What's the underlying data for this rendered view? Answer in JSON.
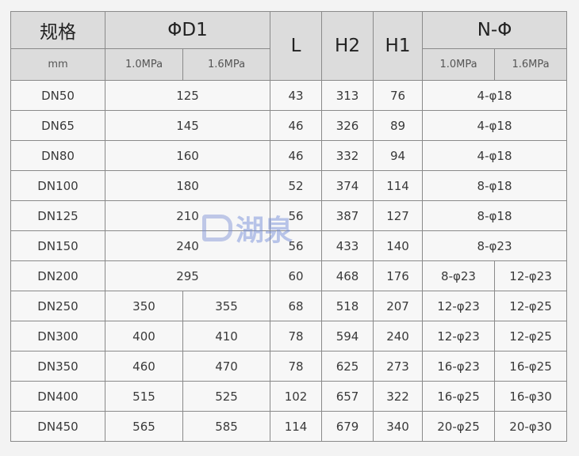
{
  "header": {
    "spec": "规格",
    "d1": "ΦD1",
    "l": "L",
    "h2": "H2",
    "h1": "H1",
    "nphi": "N-Φ",
    "unit": "mm",
    "p10": "1.0MPa",
    "p16": "1.6MPa"
  },
  "watermark": "湖泉",
  "rows": [
    {
      "dn": "DN50",
      "d1": "125",
      "l": "43",
      "h2": "313",
      "h1": "76",
      "n": "4-φ18"
    },
    {
      "dn": "DN65",
      "d1": "145",
      "l": "46",
      "h2": "326",
      "h1": "89",
      "n": "4-φ18"
    },
    {
      "dn": "DN80",
      "d1": "160",
      "l": "46",
      "h2": "332",
      "h1": "94",
      "n": "4-φ18"
    },
    {
      "dn": "DN100",
      "d1": "180",
      "l": "52",
      "h2": "374",
      "h1": "114",
      "n": "8-φ18"
    },
    {
      "dn": "DN125",
      "d1": "210",
      "l": "56",
      "h2": "387",
      "h1": "127",
      "n": "8-φ18"
    },
    {
      "dn": "DN150",
      "d1": "240",
      "l": "56",
      "h2": "433",
      "h1": "140",
      "n": "8-φ23"
    },
    {
      "dn": "DN200",
      "d1": "295",
      "l": "60",
      "h2": "468",
      "h1": "176",
      "n10": "8-φ23",
      "n16": "12-φ23"
    },
    {
      "dn": "DN250",
      "d10": "350",
      "d16": "355",
      "l": "68",
      "h2": "518",
      "h1": "207",
      "n10": "12-φ23",
      "n16": "12-φ25"
    },
    {
      "dn": "DN300",
      "d10": "400",
      "d16": "410",
      "l": "78",
      "h2": "594",
      "h1": "240",
      "n10": "12-φ23",
      "n16": "12-φ25"
    },
    {
      "dn": "DN350",
      "d10": "460",
      "d16": "470",
      "l": "78",
      "h2": "625",
      "h1": "273",
      "n10": "16-φ23",
      "n16": "16-φ25"
    },
    {
      "dn": "DN400",
      "d10": "515",
      "d16": "525",
      "l": "102",
      "h2": "657",
      "h1": "322",
      "n10": "16-φ25",
      "n16": "16-φ30"
    },
    {
      "dn": "DN450",
      "d10": "565",
      "d16": "585",
      "l": "114",
      "h2": "679",
      "h1": "340",
      "n10": "20-φ25",
      "n16": "20-φ30"
    }
  ]
}
